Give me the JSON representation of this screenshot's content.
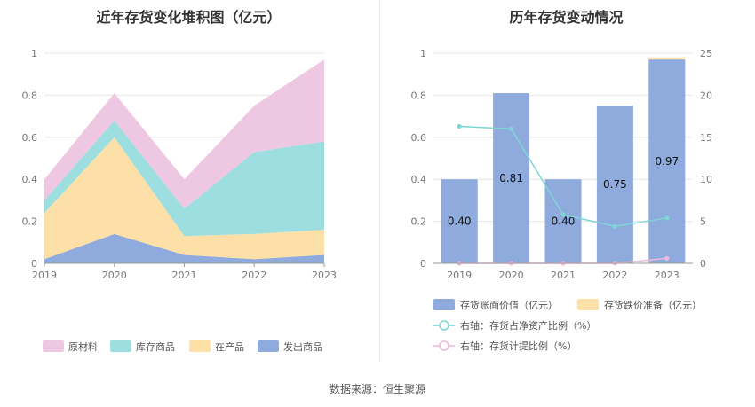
{
  "left_chart": {
    "title": "近年存货变化堆积图（亿元）"
  },
  "right_chart": {
    "title": "历年存货变动情况"
  },
  "source": "数据来源：恒生聚源",
  "chart_data": [
    {
      "type": "area",
      "title": "近年存货变化堆积图（亿元）",
      "x": [
        "2019",
        "2020",
        "2021",
        "2022",
        "2023"
      ],
      "stacked": true,
      "ylim": [
        0,
        1
      ],
      "yticks": [
        "0",
        "0.2",
        "0.4",
        "0.6",
        "0.8",
        "1"
      ],
      "grid": true,
      "legend_position": "bottom",
      "series": [
        {
          "name": "发出商品",
          "values": [
            0.02,
            0.14,
            0.04,
            0.02,
            0.04
          ],
          "color": "#8faadc"
        },
        {
          "name": "在产品",
          "values": [
            0.22,
            0.46,
            0.09,
            0.12,
            0.12
          ],
          "color": "#fde0a8"
        },
        {
          "name": "库存商品",
          "values": [
            0.06,
            0.08,
            0.13,
            0.39,
            0.42
          ],
          "color": "#9ddfe0"
        },
        {
          "name": "原材料",
          "values": [
            0.1,
            0.13,
            0.14,
            0.22,
            0.39
          ],
          "color": "#eec7e2"
        }
      ],
      "legend_order": [
        "原材料",
        "库存商品",
        "在产品",
        "发出商品"
      ]
    },
    {
      "type": "bar",
      "title": "历年存货变动情况",
      "categories": [
        "2019",
        "2020",
        "2021",
        "2022",
        "2023"
      ],
      "ylim": [
        0,
        1
      ],
      "yticks": [
        "0",
        "0.2",
        "0.4",
        "0.6",
        "0.8",
        "1"
      ],
      "y2lim": [
        0,
        25
      ],
      "y2ticks": [
        "0",
        "5",
        "10",
        "15",
        "20",
        "25"
      ],
      "grid": true,
      "legend_position": "bottom",
      "series": [
        {
          "name": "存货账面价值（亿元）",
          "type": "bar",
          "values": [
            0.4,
            0.81,
            0.4,
            0.75,
            0.97
          ],
          "labels": [
            "0.40",
            "0.81",
            "0.40",
            "0.75",
            "0.97"
          ],
          "color": "#8faadc"
        },
        {
          "name": "存货跌价准备（亿元）",
          "type": "bar",
          "values": [
            0,
            0,
            0,
            0,
            0.01
          ],
          "color": "#fde0a8"
        },
        {
          "name": "右轴：存货占净资产比例（%）",
          "type": "line",
          "axis": "right",
          "values": [
            16.3,
            16.0,
            5.8,
            4.4,
            5.4
          ],
          "color": "#7fd6d6"
        },
        {
          "name": "右轴：存货计提比例（%）",
          "type": "line",
          "axis": "right",
          "values": [
            0,
            0,
            0,
            0,
            0.6
          ],
          "color": "#f0b8da"
        }
      ]
    }
  ]
}
